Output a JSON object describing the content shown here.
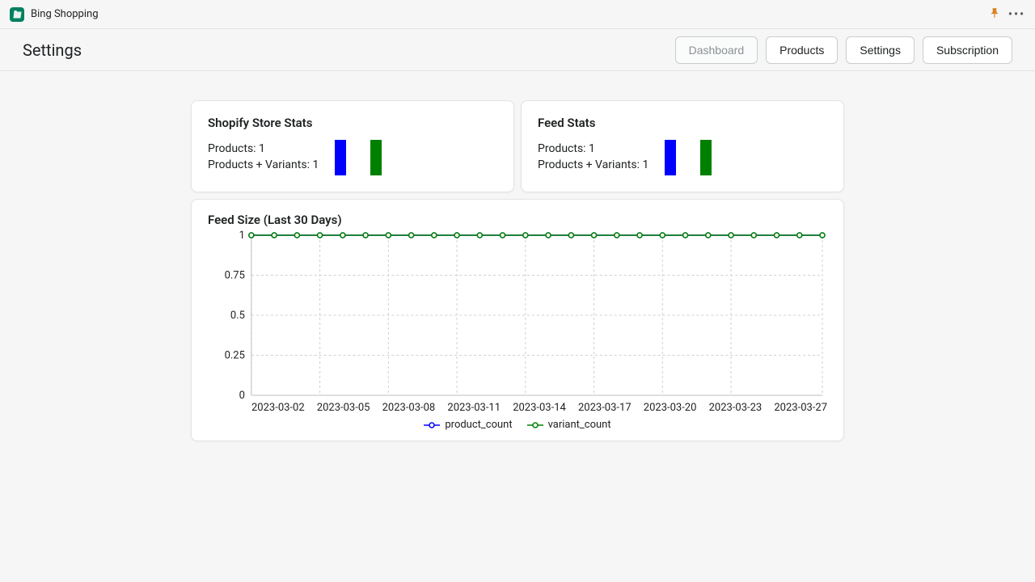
{
  "topbar": {
    "app_name": "Bing Shopping"
  },
  "header": {
    "title": "Settings",
    "nav": [
      {
        "label": "Dashboard",
        "active": true
      },
      {
        "label": "Products",
        "active": false
      },
      {
        "label": "Settings",
        "active": false
      },
      {
        "label": "Subscription",
        "active": false
      }
    ]
  },
  "shopify_stats": {
    "title": "Shopify Store Stats",
    "line1": "Products: 1",
    "line2": "Products + Variants: 1",
    "bars": [
      {
        "value": 1,
        "color": "#0000ff"
      },
      {
        "value": 1,
        "color": "#008000"
      }
    ]
  },
  "feed_stats": {
    "title": "Feed Stats",
    "line1": "Products: 1",
    "line2": "Products + Variants: 1",
    "bars": [
      {
        "value": 1,
        "color": "#0000ff"
      },
      {
        "value": 1,
        "color": "#008000"
      }
    ]
  },
  "feed_chart": {
    "title": "Feed Size (Last 30 Days)",
    "type": "line",
    "ylim": [
      0,
      1
    ],
    "yticks": [
      0,
      0.25,
      0.5,
      0.75,
      1
    ],
    "ytick_labels": [
      "0",
      "0.25",
      "0.5",
      "0.75",
      "1"
    ],
    "x_dates": [
      "2023-03-02",
      "2023-03-03",
      "2023-03-04",
      "2023-03-05",
      "2023-03-06",
      "2023-03-07",
      "2023-03-08",
      "2023-03-09",
      "2023-03-10",
      "2023-03-11",
      "2023-03-12",
      "2023-03-13",
      "2023-03-14",
      "2023-03-15",
      "2023-03-16",
      "2023-03-17",
      "2023-03-18",
      "2023-03-19",
      "2023-03-20",
      "2023-03-21",
      "2023-03-22",
      "2023-03-23",
      "2023-03-24",
      "2023-03-25",
      "2023-03-26",
      "2023-03-27"
    ],
    "x_tick_labels": [
      "2023-03-02",
      "2023-03-05",
      "2023-03-08",
      "2023-03-11",
      "2023-03-14",
      "2023-03-17",
      "2023-03-20",
      "2023-03-23",
      "2023-03-27"
    ],
    "x_tick_indices": [
      0,
      3,
      6,
      9,
      12,
      15,
      18,
      21,
      25
    ],
    "series": [
      {
        "name": "product_count",
        "color": "#0000ff",
        "marker": "circle",
        "values": [
          1,
          1,
          1,
          1,
          1,
          1,
          1,
          1,
          1,
          1,
          1,
          1,
          1,
          1,
          1,
          1,
          1,
          1,
          1,
          1,
          1,
          1,
          1,
          1,
          1,
          1
        ]
      },
      {
        "name": "variant_count",
        "color": "#008000",
        "marker": "circle",
        "values": [
          1,
          1,
          1,
          1,
          1,
          1,
          1,
          1,
          1,
          1,
          1,
          1,
          1,
          1,
          1,
          1,
          1,
          1,
          1,
          1,
          1,
          1,
          1,
          1,
          1,
          1
        ]
      }
    ],
    "grid_color": "#d0d0d0",
    "background": "#ffffff",
    "marker_size": 3,
    "line_width": 1.5
  },
  "legend": {
    "items": [
      {
        "label": "product_count",
        "color": "#0000ff"
      },
      {
        "label": "variant_count",
        "color": "#008000"
      }
    ]
  }
}
